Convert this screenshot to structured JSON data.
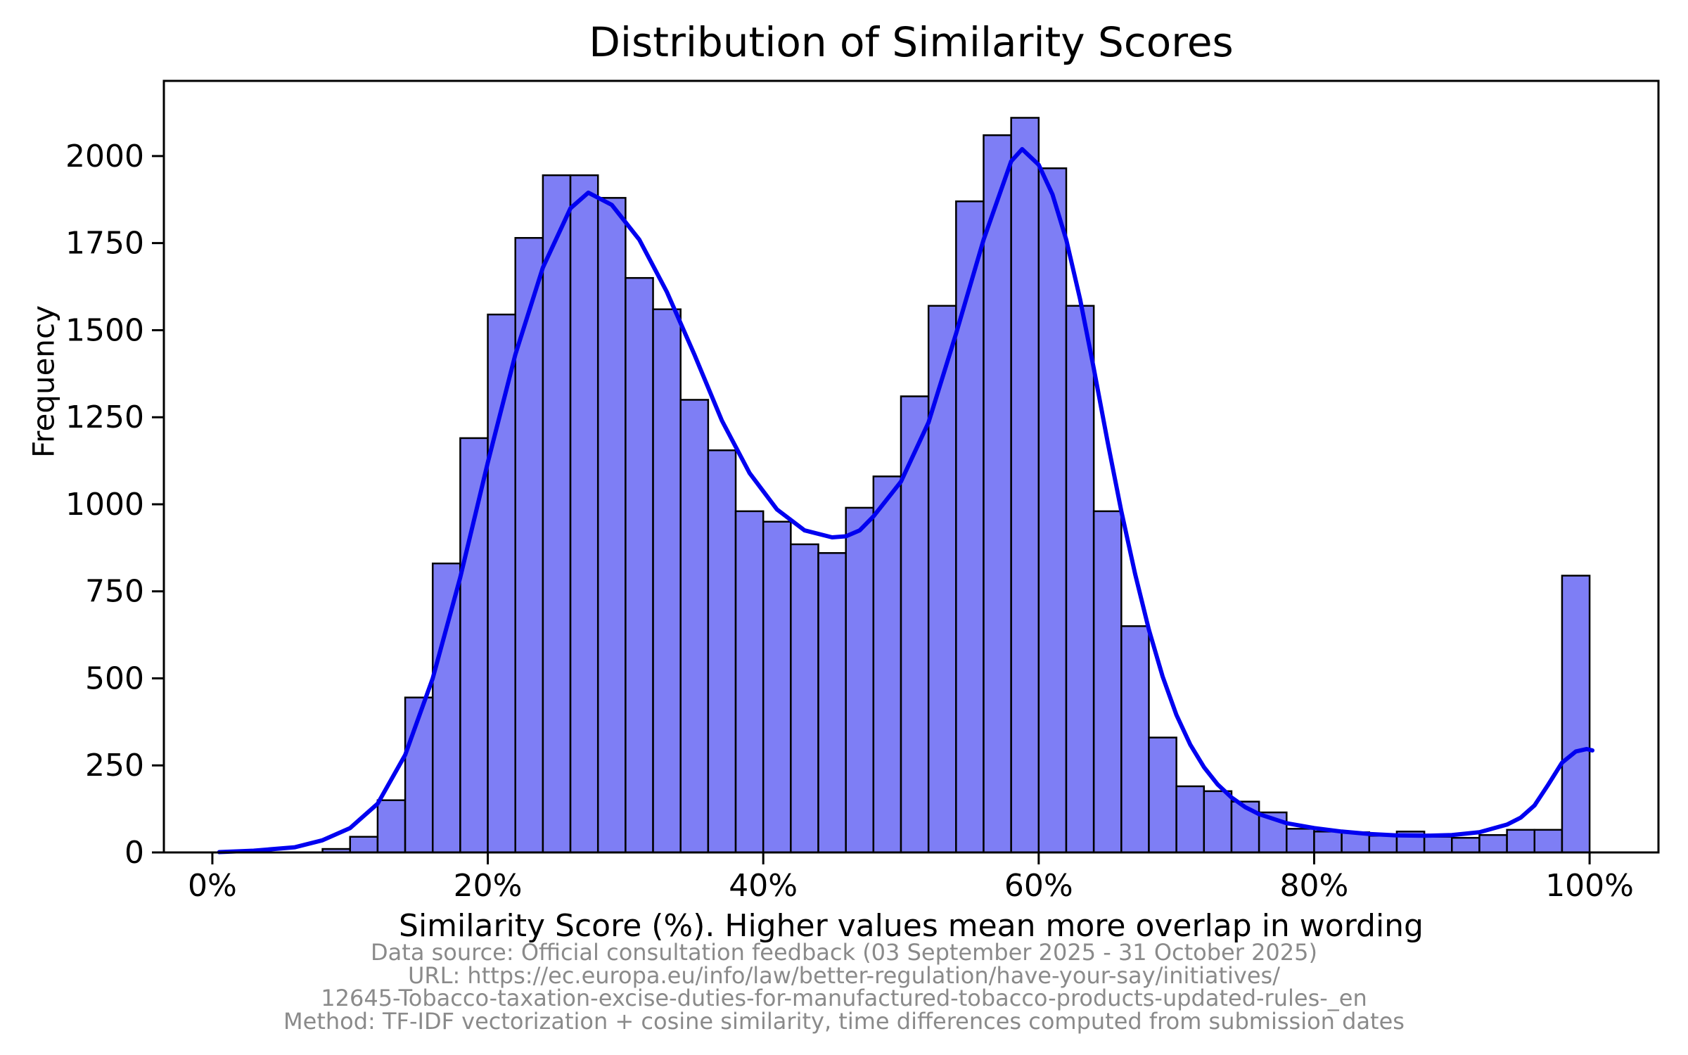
{
  "chart_data": {
    "type": "bar",
    "subtype": "histogram_with_kde",
    "title": "Distribution of Similarity Scores",
    "xlabel": "Similarity Score (%). Higher values mean more overlap in wording",
    "ylabel": "Frequency",
    "xlim": [
      -3.52,
      105.0
    ],
    "ylim": [
      0,
      2216
    ],
    "grid": false,
    "legend": "none",
    "x_ticks": {
      "values": [
        0,
        20,
        40,
        60,
        80,
        100
      ],
      "labels": [
        "0%",
        "20%",
        "40%",
        "60%",
        "80%",
        "100%"
      ]
    },
    "y_ticks": {
      "values": [
        0,
        250,
        500,
        750,
        1000,
        1250,
        1500,
        1750,
        2000
      ],
      "labels": [
        "0",
        "250",
        "500",
        "750",
        "1000",
        "1250",
        "1500",
        "1750",
        "2000"
      ]
    },
    "bins": {
      "start": 8,
      "width": 2,
      "end": 100
    },
    "values": [
      10,
      45,
      150,
      445,
      830,
      1190,
      1545,
      1765,
      1945,
      1945,
      1880,
      1650,
      1560,
      1300,
      1155,
      980,
      950,
      885,
      860,
      990,
      1080,
      1310,
      1570,
      1870,
      2060,
      2110,
      1965,
      1570,
      980,
      650,
      330,
      190,
      176,
      146,
      115,
      68,
      60,
      58,
      48,
      60,
      45,
      42,
      50,
      65,
      65,
      795
    ],
    "kde": {
      "x": [
        0.5,
        3,
        6,
        8,
        10,
        12,
        14,
        16,
        18,
        20,
        22,
        24,
        26,
        27.3,
        29,
        31,
        33,
        35,
        37,
        39,
        41,
        43,
        45,
        46,
        47,
        48,
        50,
        52,
        54,
        56,
        58,
        58.8,
        60,
        61,
        62,
        63,
        64,
        65,
        66,
        67,
        68,
        69,
        70,
        71,
        72,
        73,
        74,
        75,
        76,
        78,
        80,
        82,
        84,
        86,
        88,
        90,
        92,
        94,
        95,
        96,
        97,
        98,
        99,
        99.8,
        100.2
      ],
      "y": [
        1,
        5,
        15,
        35,
        70,
        140,
        280,
        500,
        790,
        1120,
        1430,
        1680,
        1850,
        1895,
        1860,
        1760,
        1610,
        1430,
        1240,
        1090,
        985,
        925,
        905,
        908,
        925,
        965,
        1065,
        1235,
        1490,
        1760,
        1985,
        2020,
        1975,
        1890,
        1760,
        1590,
        1390,
        1180,
        980,
        800,
        640,
        505,
        395,
        310,
        245,
        195,
        158,
        130,
        110,
        84,
        70,
        60,
        53,
        49,
        48,
        50,
        58,
        80,
        100,
        135,
        195,
        258,
        290,
        297,
        293
      ]
    },
    "colors": {
      "bar_fill": "#7e7ef5",
      "bar_edge": "#000000",
      "kde_line": "#0000f0",
      "axis": "#000000",
      "caption": "#8a8a8a"
    }
  },
  "captions": [
    "Data source: Official consultation feedback (03 September 2025 - 31 October 2025)",
    "URL: https://ec.europa.eu/info/law/better-regulation/have-your-say/initiatives/",
    "12645-Tobacco-taxation-excise-duties-for-manufactured-tobacco-products-updated-rules-_en",
    "Method: TF-IDF vectorization + cosine similarity, time differences computed from submission dates"
  ]
}
